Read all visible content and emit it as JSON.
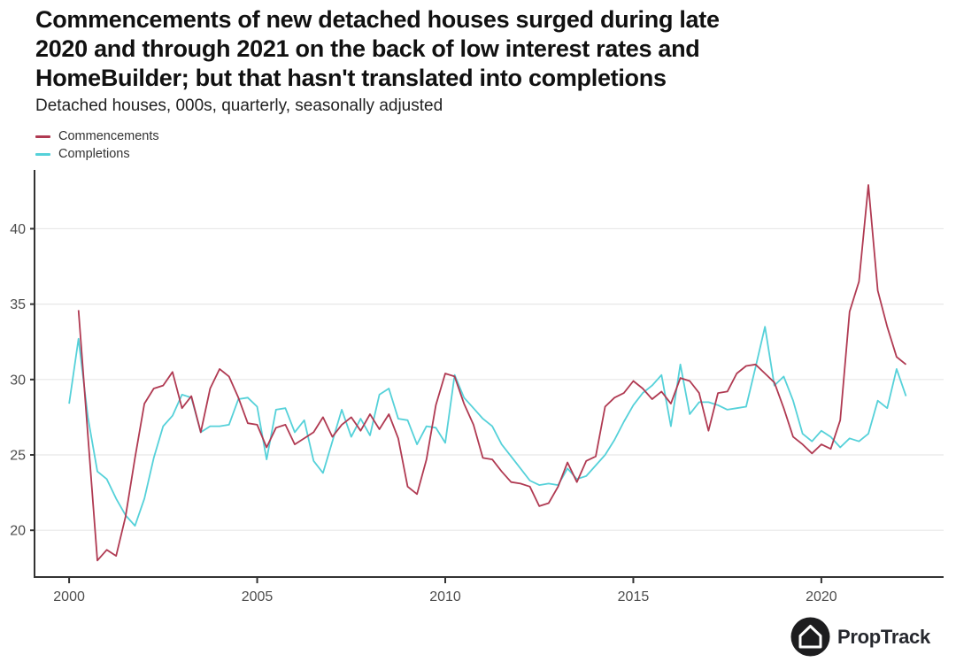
{
  "title": {
    "line1": "Commencements of new detached houses surged during late",
    "line2": "2020 and through 2021 on the back of low interest rates and",
    "line3": "HomeBuilder; but that hasn't translated into completions"
  },
  "subtitle": "Detached houses, 000s, quarterly, seasonally adjusted",
  "legend": [
    {
      "label": "Commencements",
      "color": "#b03a52"
    },
    {
      "label": "Completions",
      "color": "#55d1d9"
    }
  ],
  "branding": {
    "name": "PropTrack",
    "icon": "house-icon",
    "circle_color": "#1d1d1f"
  },
  "colors": {
    "axis": "#333333",
    "grid": "#e7e7e7",
    "tick_text": "#4d4d4d"
  },
  "chart_data": {
    "type": "line",
    "x_unit": "year, quarterly points",
    "x_start": 2000.0,
    "x_step": 0.25,
    "xlim": [
      1999.08,
      2023.25
    ],
    "ylim": [
      16.9,
      43.9
    ],
    "x_ticks": [
      2000,
      2005,
      2010,
      2015,
      2020
    ],
    "x_tick_labels": [
      "2000",
      "2005",
      "2010",
      "2015",
      "2020"
    ],
    "y_ticks": [
      20,
      25,
      30,
      35,
      40
    ],
    "y_tick_labels": [
      "20",
      "25",
      "30",
      "35",
      "40"
    ],
    "grid": "horizontal",
    "legend_position": "top-left",
    "series": [
      {
        "name": "Commencements",
        "color": "#b03a52",
        "values": [
          null,
          34.6,
          26.3,
          18.0,
          18.7,
          18.3,
          20.9,
          24.8,
          28.4,
          29.4,
          29.6,
          30.5,
          28.1,
          28.9,
          26.5,
          29.4,
          30.7,
          30.2,
          28.8,
          27.1,
          27.0,
          25.5,
          26.8,
          27.0,
          25.7,
          26.1,
          26.5,
          27.5,
          26.2,
          27.0,
          27.5,
          26.6,
          27.7,
          26.7,
          27.7,
          26.1,
          22.9,
          22.4,
          24.7,
          28.3,
          30.4,
          30.2,
          28.4,
          27.0,
          24.8,
          24.7,
          23.9,
          23.2,
          23.1,
          22.9,
          21.6,
          21.8,
          22.9,
          24.5,
          23.2,
          24.6,
          24.9,
          28.2,
          28.8,
          29.1,
          29.9,
          29.4,
          28.7,
          29.2,
          28.4,
          30.1,
          29.9,
          29.1,
          26.6,
          29.1,
          29.2,
          30.4,
          30.9,
          31.0,
          30.4,
          29.8,
          28.1,
          26.2,
          25.7,
          25.1,
          25.7,
          25.4,
          27.3,
          34.5,
          36.5,
          42.9,
          35.9,
          33.5,
          31.5,
          31.0
        ]
      },
      {
        "name": "Completions",
        "color": "#55d1d9",
        "values": [
          28.4,
          32.7,
          27.5,
          23.9,
          23.4,
          22.1,
          21.0,
          20.3,
          22.1,
          24.8,
          26.9,
          27.6,
          29.0,
          28.8,
          26.5,
          26.9,
          26.9,
          27.0,
          28.7,
          28.8,
          28.2,
          24.7,
          28.0,
          28.1,
          26.5,
          27.3,
          24.6,
          23.8,
          25.9,
          28.0,
          26.2,
          27.4,
          26.3,
          29.0,
          29.4,
          27.4,
          27.3,
          25.7,
          26.9,
          26.8,
          25.8,
          30.3,
          28.8,
          28.1,
          27.4,
          26.9,
          25.7,
          24.9,
          24.1,
          23.3,
          23.0,
          23.1,
          23.0,
          24.1,
          23.4,
          23.6,
          24.3,
          25.0,
          26.0,
          27.2,
          28.3,
          29.1,
          29.6,
          30.3,
          26.9,
          31.0,
          27.7,
          28.5,
          28.5,
          28.3,
          28.0,
          28.1,
          28.2,
          30.8,
          33.5,
          29.6,
          30.2,
          28.6,
          26.4,
          25.9,
          26.6,
          26.2,
          25.5,
          26.1,
          25.9,
          26.4,
          28.6,
          28.1,
          30.7,
          28.9
        ]
      }
    ]
  }
}
